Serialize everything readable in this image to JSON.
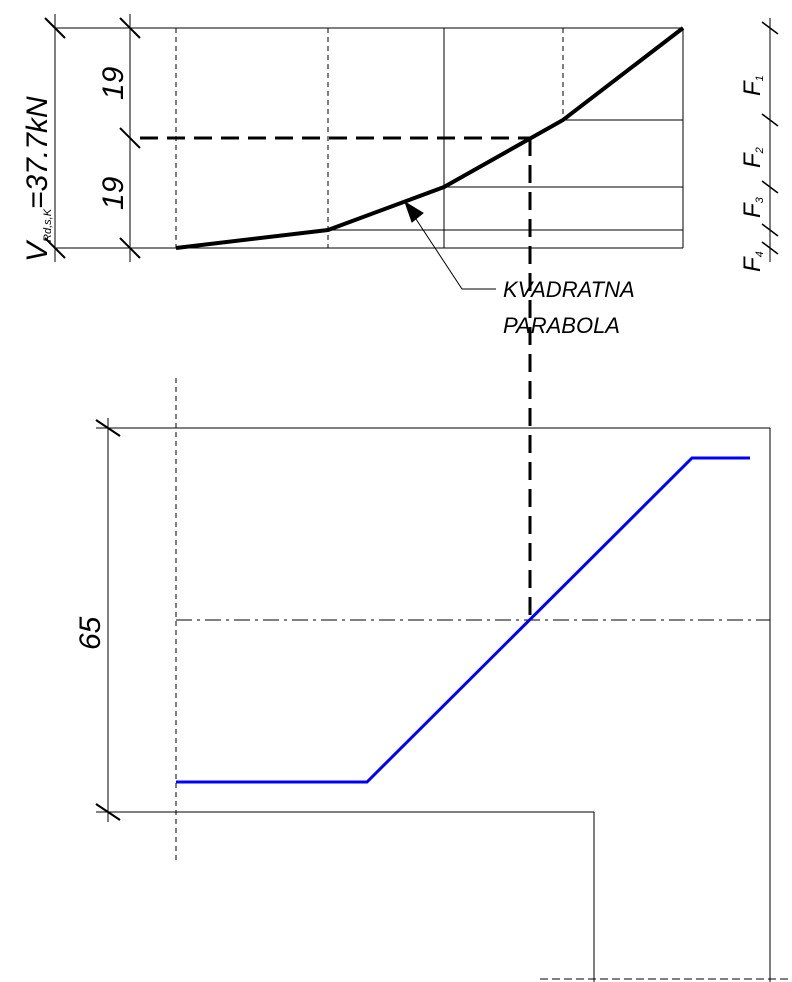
{
  "shear_label": {
    "main": "V",
    "subscript": "Rd,s,K",
    "value": "=37.7kN"
  },
  "dimensions": {
    "upper_segment": "19",
    "lower_segment": "19",
    "beam_depth": "65"
  },
  "annotation": {
    "line1": "KVADRATNA",
    "line2": "PARABOLA"
  },
  "force_labels": [
    {
      "main": "F",
      "sub": "1"
    },
    {
      "main": "F",
      "sub": "2"
    },
    {
      "main": "F",
      "sub": "3"
    },
    {
      "main": "F",
      "sub": "4"
    }
  ],
  "colors": {
    "linework": "#000000",
    "tendon": "#0000ff"
  }
}
